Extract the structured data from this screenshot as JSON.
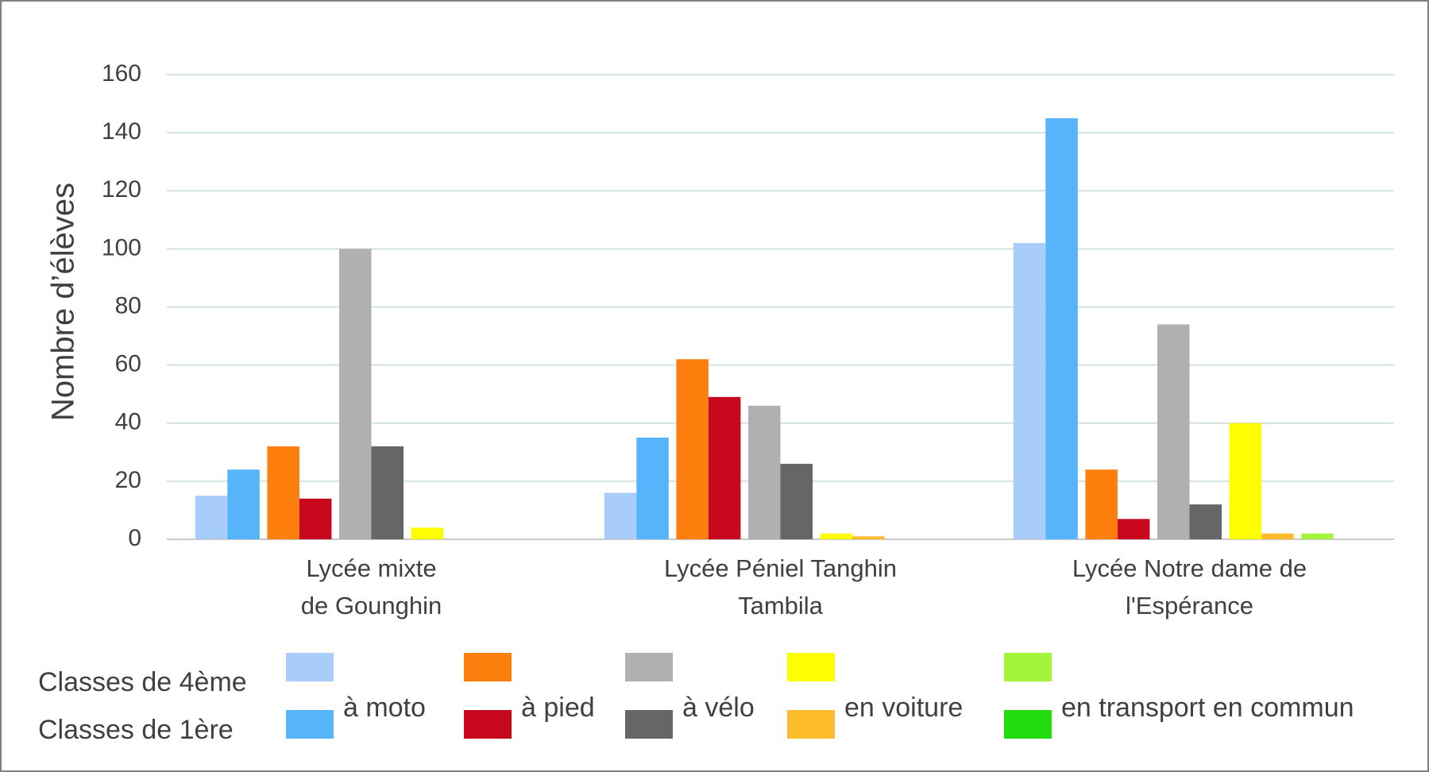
{
  "chart_data": {
    "type": "bar",
    "y_label": "Nombre d’élèves",
    "categories": [
      [
        "Lycée mixte",
        "de Gounghin"
      ],
      [
        "Lycée Péniel Tanghin",
        "Tambila"
      ],
      [
        "Lycée Notre dame de",
        "l'Espérance"
      ]
    ],
    "legend_rows": [
      "Classes de 4ème",
      "Classes de 1ère"
    ],
    "series": [
      {
        "name": "à moto",
        "colors": [
          "#a9cdfb",
          "#56b4fa"
        ],
        "values": [
          [
            15,
            16,
            102
          ],
          [
            24,
            35,
            145
          ]
        ]
      },
      {
        "name": "à pied",
        "colors": [
          "#fc7e0c",
          "#c8081c"
        ],
        "values": [
          [
            32,
            62,
            24
          ],
          [
            14,
            49,
            7
          ]
        ]
      },
      {
        "name": "à vélo",
        "colors": [
          "#b0b0b0",
          "#666666"
        ],
        "values": [
          [
            100,
            46,
            74
          ],
          [
            32,
            26,
            12
          ]
        ]
      },
      {
        "name": "en voiture",
        "colors": [
          "#fefe00",
          "#fcbb2a"
        ],
        "values": [
          [
            4,
            2,
            40
          ],
          [
            0,
            1,
            2
          ]
        ]
      },
      {
        "name": "en transport en commun",
        "colors": [
          "#a4f43c",
          "#22dd0e"
        ],
        "values": [
          [
            0,
            0,
            2
          ],
          [
            0,
            0,
            0
          ]
        ]
      }
    ],
    "ylim": [
      0,
      160
    ],
    "yticks": [
      0,
      20,
      40,
      60,
      80,
      100,
      120,
      140,
      160
    ],
    "grid": true
  }
}
